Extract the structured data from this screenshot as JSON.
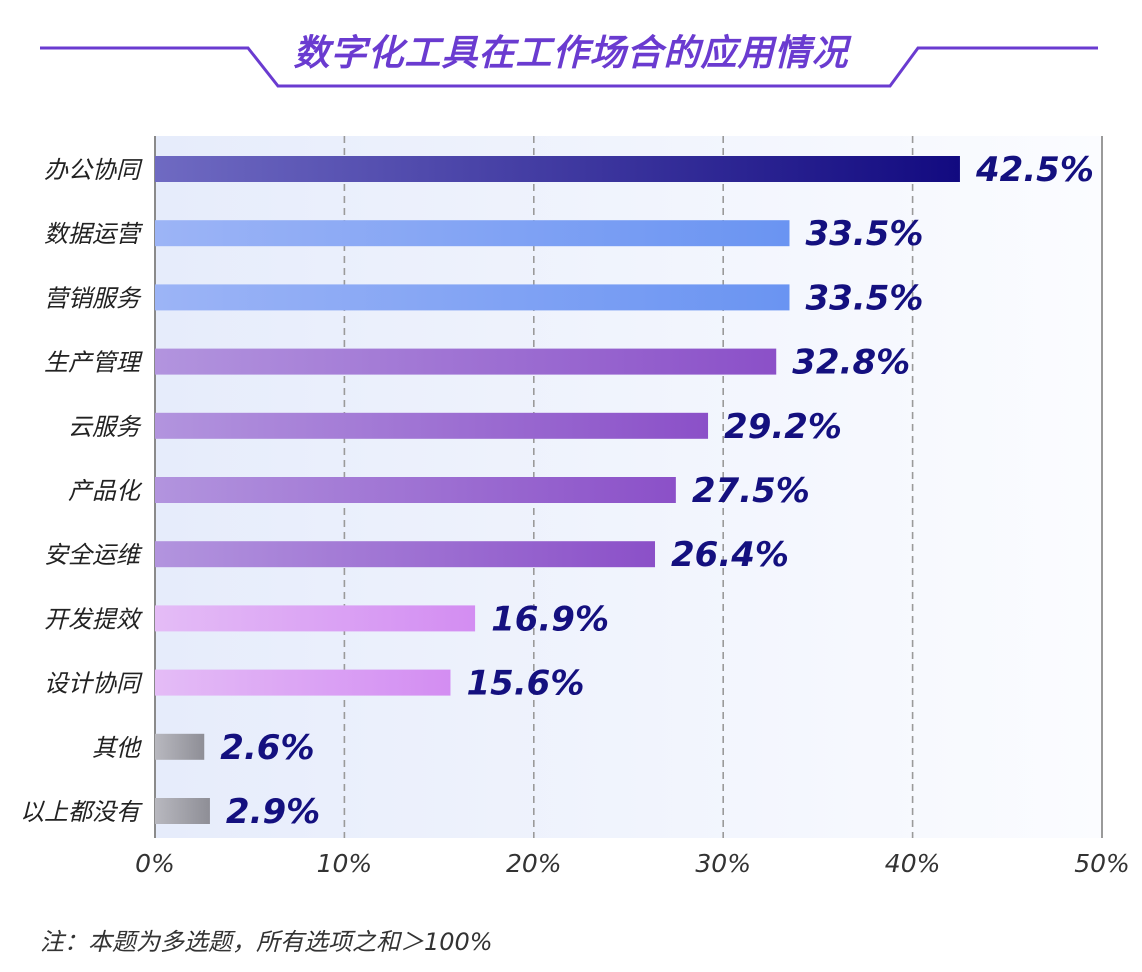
{
  "chart_data": {
    "type": "bar",
    "orientation": "horizontal",
    "title": "数字化工具在工作场合的应用情况",
    "categories": [
      "办公协同",
      "数据运营",
      "营销服务",
      "生产管理",
      "云服务",
      "产品化",
      "安全运维",
      "开发提效",
      "设计协同",
      "其他",
      "以上都没有"
    ],
    "values": [
      42.5,
      33.5,
      33.5,
      32.8,
      29.2,
      27.5,
      26.4,
      16.9,
      15.6,
      2.6,
      2.9
    ],
    "value_labels": [
      "42.5%",
      "33.5%",
      "33.5%",
      "32.8%",
      "29.2%",
      "27.5%",
      "26.4%",
      "16.9%",
      "15.6%",
      "2.6%",
      "2.9%"
    ],
    "xlim": [
      0,
      50
    ],
    "x_ticks": [
      "0%",
      "10%",
      "20%",
      "30%",
      "40%",
      "50%"
    ],
    "grid": "vertical dashed",
    "legend": "none",
    "colors": {
      "title": "#6a3bd0",
      "frame": "#6a3bd0",
      "value_label": "#14107f",
      "groups": [
        [
          "#6f6ac2",
          "#120a80"
        ],
        [
          "#9cb4f6",
          "#6a94f2"
        ],
        [
          "#9cb4f6",
          "#6a94f2"
        ],
        [
          "#b294de",
          "#8b50c8"
        ],
        [
          "#b294de",
          "#8b50c8"
        ],
        [
          "#b294de",
          "#8b50c8"
        ],
        [
          "#b294de",
          "#8b50c8"
        ],
        [
          "#e4bcf6",
          "#d38df2"
        ],
        [
          "#e4bcf6",
          "#d38df2"
        ],
        [
          "#b8b8bf",
          "#8e8e96"
        ],
        [
          "#b8b8bf",
          "#8e8e96"
        ]
      ]
    }
  },
  "footnote": "注：本题为多选题，所有选项之和＞100%"
}
